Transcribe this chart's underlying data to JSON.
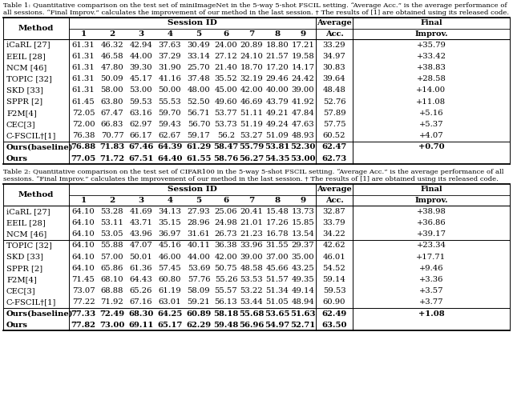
{
  "table1_caption_line1": "Table 1: Quantitative comparison on the test set of miniImageNet in the 5-way 5-shot FSCIL setting. “Average Acc.” is the average performance of",
  "table1_caption_line2": "all sessions. “Final Improv.” calculates the improvement of our method in the last session. † The results of [1] are obtained using its released code.",
  "table2_caption_line1": "Table 2: Quantitative comparison on the test set of CIFAR100 in the 5-way 5-shot FSCIL setting. “Average Acc.” is the average performance of all",
  "table2_caption_line2": "sessions. “Final Improv.” calculates the improvement of our method in the last session. † The results of [1] are obtained using its released code.",
  "table1_rows": [
    [
      "iCaRL [27]",
      "61.31",
      "46.32",
      "42.94",
      "37.63",
      "30.49",
      "24.00",
      "20.89",
      "18.80",
      "17.21",
      "33.29",
      "+35.79"
    ],
    [
      "EEIL [28]",
      "61.31",
      "46.58",
      "44.00",
      "37.29",
      "33.14",
      "27.12",
      "24.10",
      "21.57",
      "19.58",
      "34.97",
      "+33.42"
    ],
    [
      "NCM [46]",
      "61.31",
      "47.80",
      "39.30",
      "31.90",
      "25.70",
      "21.40",
      "18.70",
      "17.20",
      "14.17",
      "30.83",
      "+38.83"
    ],
    [
      "TOPIC [32]",
      "61.31",
      "50.09",
      "45.17",
      "41.16",
      "37.48",
      "35.52",
      "32.19",
      "29.46",
      "24.42",
      "39.64",
      "+28.58"
    ],
    [
      "SKD [33]",
      "61.31",
      "58.00",
      "53.00",
      "50.00",
      "48.00",
      "45.00",
      "42.00",
      "40.00",
      "39.00",
      "48.48",
      "+14.00"
    ],
    [
      "SPPR [2]",
      "61.45",
      "63.80",
      "59.53",
      "55.53",
      "52.50",
      "49.60",
      "46.69",
      "43.79",
      "41.92",
      "52.76",
      "+11.08"
    ],
    [
      "F2M[4]",
      "72.05",
      "67.47",
      "63.16",
      "59.70",
      "56.71",
      "53.77",
      "51.11",
      "49.21",
      "47.84",
      "57.89",
      "+5.16"
    ],
    [
      "CEC[3]",
      "72.00",
      "66.83",
      "62.97",
      "59.43",
      "56.70",
      "53.73",
      "51.19",
      "49.24",
      "47.63",
      "57.75",
      "+5.37"
    ],
    [
      "C-FSCIL†[1]",
      "76.38",
      "70.77",
      "66.17",
      "62.67",
      "59.17",
      "56.2",
      "53.27",
      "51.09",
      "48.93",
      "60.52",
      "+4.07"
    ],
    [
      "Ours(baseline)",
      "76.88",
      "71.83",
      "67.46",
      "64.39",
      "61.29",
      "58.47",
      "55.79",
      "53.81",
      "52.30",
      "62.47",
      "+0.70"
    ],
    [
      "Ours",
      "77.05",
      "71.72",
      "67.51",
      "64.40",
      "61.55",
      "58.76",
      "56.27",
      "54.35",
      "53.00",
      "62.73",
      ""
    ]
  ],
  "table1_separator_after": [
    8
  ],
  "table2_rows": [
    [
      "iCaRL [27]",
      "64.10",
      "53.28",
      "41.69",
      "34.13",
      "27.93",
      "25.06",
      "20.41",
      "15.48",
      "13.73",
      "32.87",
      "+38.98"
    ],
    [
      "EEIL [28]",
      "64.10",
      "53.11",
      "43.71",
      "35.15",
      "28.96",
      "24.98",
      "21.01",
      "17.26",
      "15.85",
      "33.79",
      "+36.86"
    ],
    [
      "NCM [46]",
      "64.10",
      "53.05",
      "43.96",
      "36.97",
      "31.61",
      "26.73",
      "21.23",
      "16.78",
      "13.54",
      "34.22",
      "+39.17"
    ],
    [
      "TOPIC [32]",
      "64.10",
      "55.88",
      "47.07",
      "45.16",
      "40.11",
      "36.38",
      "33.96",
      "31.55",
      "29.37",
      "42.62",
      "+23.34"
    ],
    [
      "SKD [33]",
      "64.10",
      "57.00",
      "50.01",
      "46.00",
      "44.00",
      "42.00",
      "39.00",
      "37.00",
      "35.00",
      "46.01",
      "+17.71"
    ],
    [
      "SPPR [2]",
      "64.10",
      "65.86",
      "61.36",
      "57.45",
      "53.69",
      "50.75",
      "48.58",
      "45.66",
      "43.25",
      "54.52",
      "+9.46"
    ],
    [
      "F2M[4]",
      "71.45",
      "68.10",
      "64.43",
      "60.80",
      "57.76",
      "55.26",
      "53.53",
      "51.57",
      "49.35",
      "59.14",
      "+3.36"
    ],
    [
      "CEC[3]",
      "73.07",
      "68.88",
      "65.26",
      "61.19",
      "58.09",
      "55.57",
      "53.22",
      "51.34",
      "49.14",
      "59.53",
      "+3.57"
    ],
    [
      "C-FSCIL†[1]",
      "77.22",
      "71.92",
      "67.16",
      "63.01",
      "59.21",
      "56.13",
      "53.44",
      "51.05",
      "48.94",
      "60.90",
      "+3.77"
    ],
    [
      "Ours(baseline)",
      "77.33",
      "72.49",
      "68.30",
      "64.25",
      "60.89",
      "58.18",
      "55.68",
      "53.65",
      "51.63",
      "62.49",
      "+1.08"
    ],
    [
      "Ours",
      "77.82",
      "73.00",
      "69.11",
      "65.17",
      "62.29",
      "59.48",
      "56.96",
      "54.97",
      "52.71",
      "63.50",
      ""
    ]
  ],
  "table2_separator_after": [
    2,
    8
  ],
  "bold_rows": [
    9,
    10
  ],
  "bg_color": "#ffffff",
  "text_color": "#000000"
}
